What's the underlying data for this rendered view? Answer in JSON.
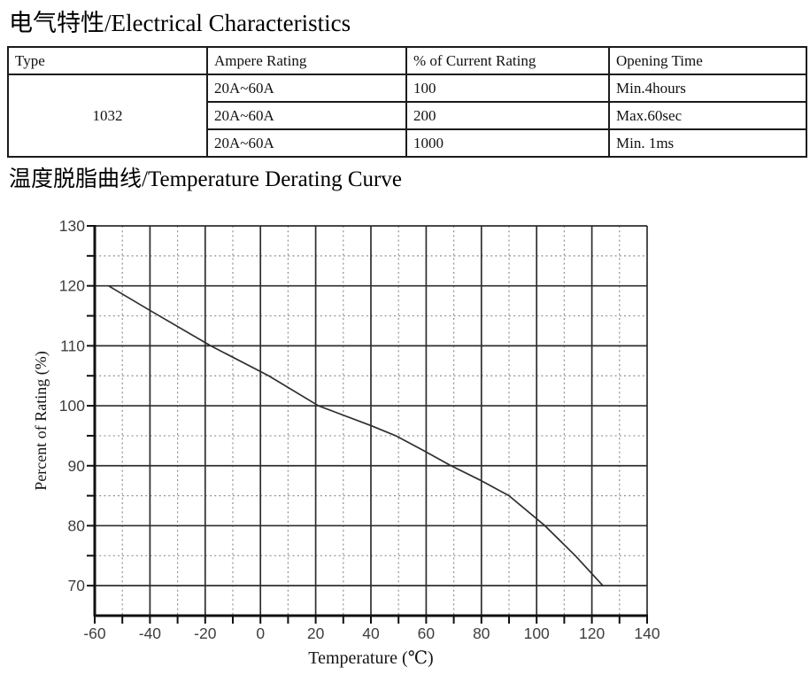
{
  "electrical": {
    "title": "电气特性/Electrical Characteristics",
    "table": {
      "headers": [
        "Type",
        "Ampere Rating",
        "% of Current Rating",
        "Opening Time"
      ],
      "type_value": "1032",
      "rows": [
        [
          "20A~60A",
          "100",
          "Min.4hours"
        ],
        [
          "20A~60A",
          "200",
          "Max.60sec"
        ],
        [
          "20A~60A",
          "1000",
          "Min. 1ms"
        ]
      ]
    }
  },
  "derating": {
    "title": "温度脱脂曲线/Temperature Derating Curve"
  },
  "chart_data": {
    "type": "line",
    "title": "",
    "xlabel": "Temperature (℃)",
    "ylabel": "Percent of Rating (%)",
    "xlim": [
      -60,
      140
    ],
    "ylim": [
      65,
      130
    ],
    "x_major_ticks": [
      -60,
      -40,
      -20,
      0,
      20,
      40,
      60,
      80,
      100,
      120,
      140
    ],
    "x_minor_gridlines": [
      -50,
      -30,
      -10,
      10,
      30,
      50,
      70,
      90,
      110,
      130
    ],
    "y_major_ticks": [
      70,
      80,
      90,
      100,
      110,
      120,
      130
    ],
    "y_minor_gridlines": [
      75,
      85,
      95,
      105,
      115,
      125
    ],
    "grid": {
      "major": "solid",
      "minor": "dashed"
    },
    "legend": "none",
    "colors": {
      "curve": "#2f2f2f",
      "major_grid": "#2e2e2e",
      "minor_grid": "#8f8f8f",
      "axis": "#101010",
      "tick_text": "#3e3e3e"
    },
    "series": [
      {
        "name": "temperature-derating",
        "points": [
          [
            -55,
            120
          ],
          [
            -40,
            115.9
          ],
          [
            -18,
            110
          ],
          [
            3,
            105
          ],
          [
            21,
            100
          ],
          [
            40,
            96.7
          ],
          [
            49,
            95
          ],
          [
            60,
            92.3
          ],
          [
            69,
            90
          ],
          [
            80,
            87.5
          ],
          [
            90,
            85
          ],
          [
            103,
            80
          ],
          [
            114,
            75
          ],
          [
            124,
            70
          ]
        ]
      }
    ]
  }
}
